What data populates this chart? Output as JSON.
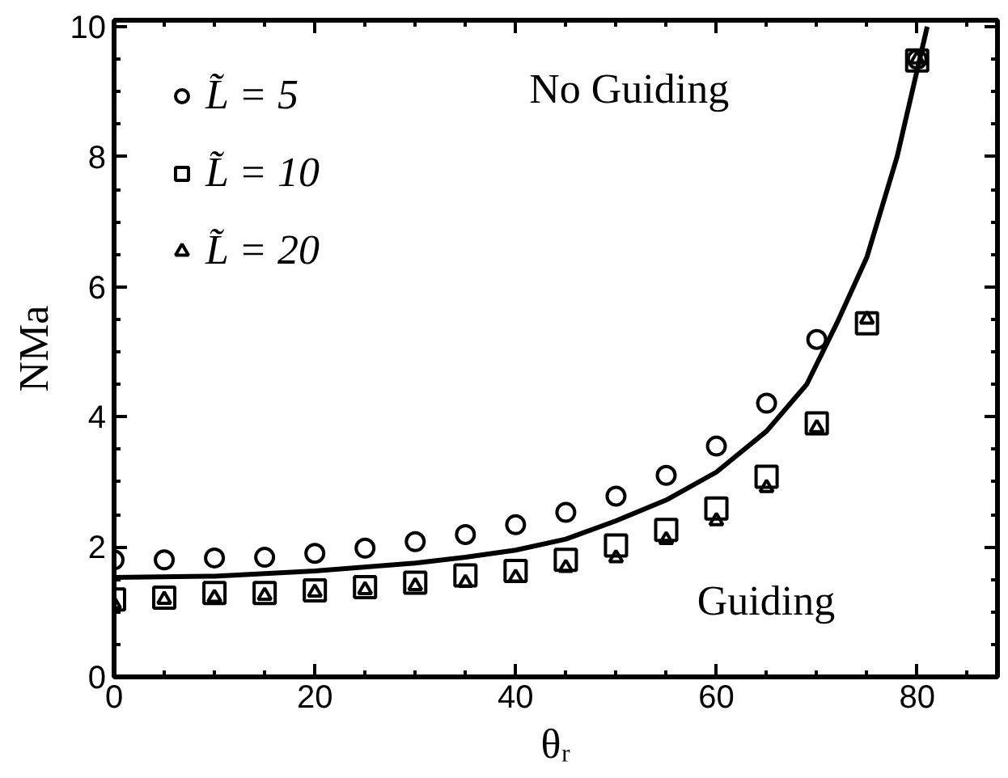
{
  "chart_data": {
    "type": "scatter",
    "xlabel": "θᵣ",
    "ylabel": "NMa",
    "annotations": [
      "No Guiding",
      "Guiding"
    ],
    "xlim": [
      0,
      88
    ],
    "ylim": [
      0,
      10.1
    ],
    "xticks": [
      0,
      20,
      40,
      60,
      80
    ],
    "yticks": [
      0,
      2,
      4,
      6,
      8,
      10
    ],
    "grid": false,
    "legend": "top left",
    "series": [
      {
        "name": "L̃ = 5",
        "color": "#000000",
        "marker": "circle",
        "x": [
          0,
          5,
          10,
          15,
          20,
          25,
          30,
          35,
          40,
          45,
          50,
          55,
          60,
          65,
          70,
          80
        ],
        "values": [
          1.8,
          1.8,
          1.83,
          1.84,
          1.9,
          1.98,
          2.08,
          2.19,
          2.34,
          2.53,
          2.78,
          3.1,
          3.55,
          4.21,
          5.19,
          9.5
        ]
      },
      {
        "name": "L̃ = 10",
        "color": "#000000",
        "marker": "square",
        "x": [
          0,
          5,
          10,
          15,
          20,
          25,
          30,
          35,
          40,
          45,
          50,
          55,
          60,
          65,
          70,
          75,
          80
        ],
        "values": [
          1.19,
          1.22,
          1.29,
          1.29,
          1.33,
          1.38,
          1.45,
          1.56,
          1.63,
          1.8,
          2.02,
          2.26,
          2.59,
          3.08,
          3.9,
          5.44,
          9.48
        ]
      },
      {
        "name": "L̃ = 20",
        "color": "#000000",
        "marker": "triangle",
        "x": [
          0,
          5,
          10,
          15,
          20,
          25,
          30,
          35,
          40,
          45,
          50,
          55,
          60,
          65,
          70,
          75,
          80
        ],
        "values": [
          1.12,
          1.19,
          1.22,
          1.25,
          1.3,
          1.34,
          1.4,
          1.45,
          1.53,
          1.68,
          1.83,
          2.11,
          2.4,
          2.91,
          3.83,
          5.5,
          9.5
        ]
      },
      {
        "type": "line",
        "color": "#000000",
        "line_style": "solid",
        "x": [
          0,
          10,
          20,
          30,
          35,
          40,
          45,
          50,
          55,
          60,
          65,
          69,
          72,
          75,
          78,
          81
        ],
        "values": [
          1.53,
          1.55,
          1.63,
          1.75,
          1.84,
          1.95,
          2.12,
          2.4,
          2.72,
          3.15,
          3.78,
          4.5,
          5.44,
          6.46,
          8.0,
          10.0
        ]
      }
    ]
  }
}
